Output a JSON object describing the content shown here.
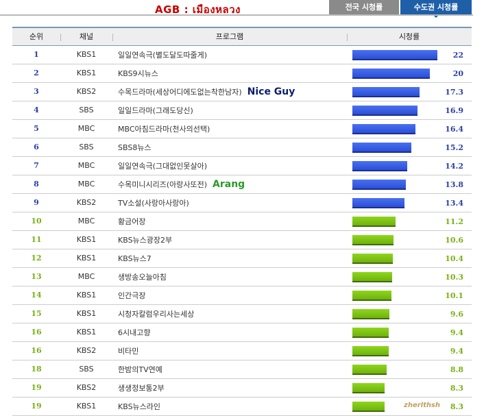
{
  "header": {
    "title": "AGB : เมืองหลวง"
  },
  "tabs": [
    {
      "label": "전국 시청률",
      "active": false
    },
    {
      "label": "수도권 시청률",
      "active": true
    }
  ],
  "table": {
    "columns": {
      "rank": "순위",
      "channel": "채널",
      "program": "프로그램",
      "rating": "시청률"
    },
    "max_rating": 22,
    "rows": [
      {
        "rank": "1",
        "channel": "KBS1",
        "program": "일일연속극(별도달도따줄게)",
        "rating": "22",
        "value": 22,
        "color": "blue",
        "annotation": ""
      },
      {
        "rank": "2",
        "channel": "KBS1",
        "program": "KBS9시뉴스",
        "rating": "20",
        "value": 20,
        "color": "blue",
        "annotation": ""
      },
      {
        "rank": "3",
        "channel": "KBS2",
        "program": "수목드라마(세상어디에도없는착한남자)",
        "rating": "17.3",
        "value": 17.3,
        "color": "blue",
        "annotation": "Nice Guy"
      },
      {
        "rank": "4",
        "channel": "SBS",
        "program": "일일드라마(그래도당신)",
        "rating": "16.9",
        "value": 16.9,
        "color": "blue",
        "annotation": ""
      },
      {
        "rank": "5",
        "channel": "MBC",
        "program": "MBC아침드라마(천사의선택)",
        "rating": "16.4",
        "value": 16.4,
        "color": "blue",
        "annotation": ""
      },
      {
        "rank": "6",
        "channel": "SBS",
        "program": "SBS8뉴스",
        "rating": "15.2",
        "value": 15.2,
        "color": "blue",
        "annotation": ""
      },
      {
        "rank": "7",
        "channel": "MBC",
        "program": "일일연속극(그대없인못살아)",
        "rating": "14.2",
        "value": 14.2,
        "color": "blue",
        "annotation": ""
      },
      {
        "rank": "8",
        "channel": "MBC",
        "program": "수목미니시리즈(아랑사또전)",
        "rating": "13.8",
        "value": 13.8,
        "color": "blue",
        "annotation": "Arang"
      },
      {
        "rank": "9",
        "channel": "KBS2",
        "program": "TV소설(사랑아사랑아)",
        "rating": "13.4",
        "value": 13.4,
        "color": "blue",
        "annotation": ""
      },
      {
        "rank": "10",
        "channel": "MBC",
        "program": "황금어장",
        "rating": "11.2",
        "value": 11.2,
        "color": "green",
        "annotation": ""
      },
      {
        "rank": "11",
        "channel": "KBS1",
        "program": "KBS뉴스광장2부",
        "rating": "10.6",
        "value": 10.6,
        "color": "green",
        "annotation": ""
      },
      {
        "rank": "12",
        "channel": "KBS1",
        "program": "KBS뉴스7",
        "rating": "10.4",
        "value": 10.4,
        "color": "green",
        "annotation": ""
      },
      {
        "rank": "13",
        "channel": "MBC",
        "program": "생방송오늘아침",
        "rating": "10.3",
        "value": 10.3,
        "color": "green",
        "annotation": ""
      },
      {
        "rank": "14",
        "channel": "KBS1",
        "program": "인간극장",
        "rating": "10.1",
        "value": 10.1,
        "color": "green",
        "annotation": ""
      },
      {
        "rank": "15",
        "channel": "KBS1",
        "program": "시청자칼럼우리사는세상",
        "rating": "9.6",
        "value": 9.6,
        "color": "green",
        "annotation": ""
      },
      {
        "rank": "16",
        "channel": "KBS1",
        "program": "6시내고향",
        "rating": "9.4",
        "value": 9.4,
        "color": "green",
        "annotation": ""
      },
      {
        "rank": "16",
        "channel": "KBS2",
        "program": "비타민",
        "rating": "9.4",
        "value": 9.4,
        "color": "green",
        "annotation": ""
      },
      {
        "rank": "18",
        "channel": "SBS",
        "program": "한밤의TV연예",
        "rating": "8.8",
        "value": 8.8,
        "color": "green",
        "annotation": ""
      },
      {
        "rank": "19",
        "channel": "KBS2",
        "program": "생생정보통2부",
        "rating": "8.3",
        "value": 8.3,
        "color": "green",
        "annotation": ""
      },
      {
        "rank": "19",
        "channel": "KBS1",
        "program": "KBS뉴스라인",
        "rating": "8.3",
        "value": 8.3,
        "color": "green",
        "annotation": ""
      }
    ]
  },
  "watermark": "zherlthsh",
  "colors": {
    "blue_bar": "#2a4fd8",
    "green_bar": "#6fb20e",
    "tab_active": "#1f5fa8",
    "tab_inactive": "#8a8a8a",
    "title": "#cc0000"
  }
}
